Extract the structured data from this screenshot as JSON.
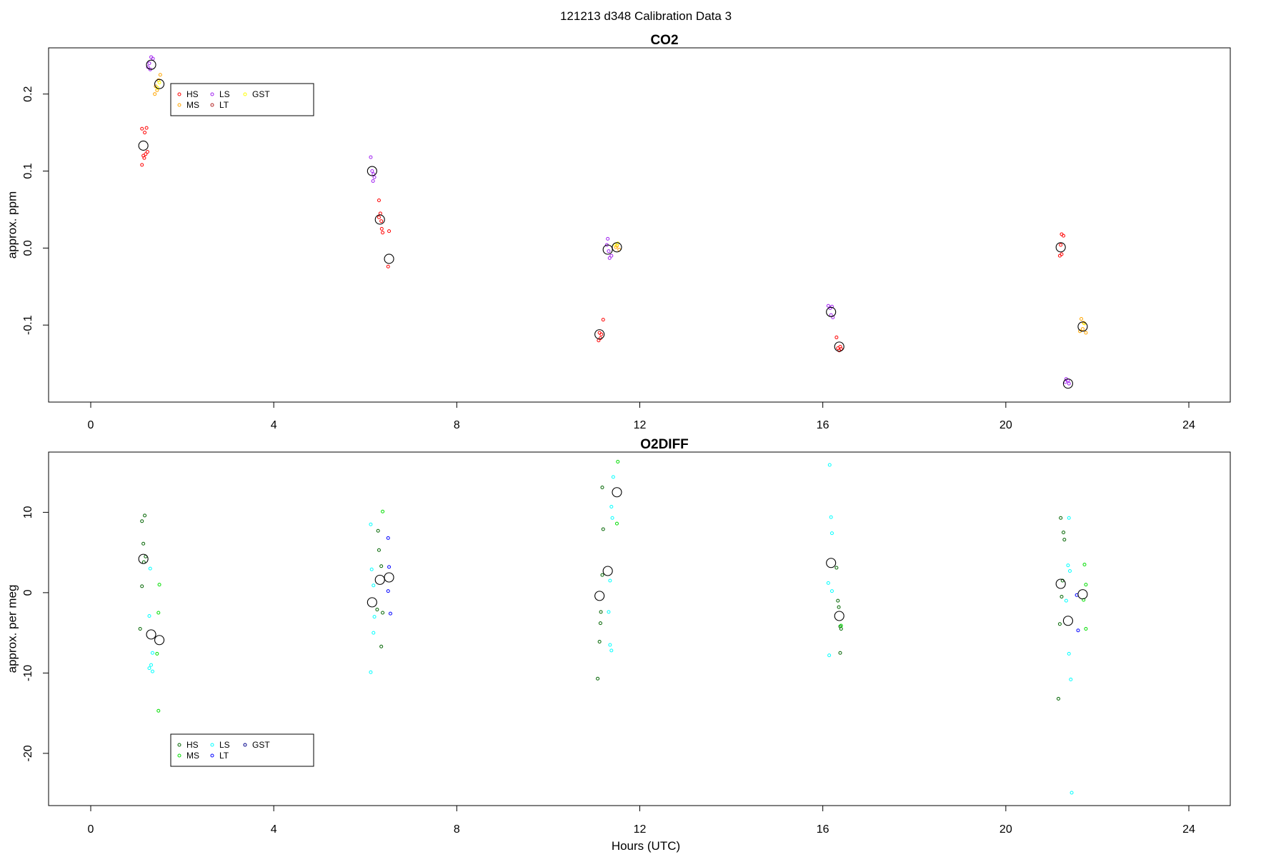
{
  "suptitle": "121213   d348   Calibration Data 3",
  "chart_data": [
    {
      "type": "scatter",
      "title": "CO2",
      "xlabel": "",
      "ylabel": "approx. ppm",
      "xlim": [
        0,
        24
      ],
      "ylim": [
        -0.2,
        0.26
      ],
      "xticks": [
        "0",
        "4",
        "8",
        "12",
        "16",
        "20",
        "24"
      ],
      "xtick_values": [
        0,
        4,
        8,
        12,
        16,
        20,
        24
      ],
      "yticks": [
        "-0.1",
        "0.0",
        "0.1",
        "0.2"
      ],
      "ytick_values": [
        -0.1,
        0.0,
        0.1,
        0.2
      ],
      "legend_placement": "top-left",
      "legend": [
        {
          "name": "HS",
          "color": "#ff0000"
        },
        {
          "name": "MS",
          "color": "#ffa500"
        },
        {
          "name": "LS",
          "color": "#a020f0"
        },
        {
          "name": "LT",
          "color": "#b22222"
        },
        {
          "name": "GST",
          "color": "#ffff00"
        }
      ],
      "series": [
        {
          "name": "HS",
          "color": "#ff0000",
          "points": [
            [
              1.12,
              0.155
            ],
            [
              1.18,
              0.15
            ],
            [
              1.22,
              0.156
            ],
            [
              1.15,
              0.12
            ],
            [
              1.2,
              0.122
            ],
            [
              1.17,
              0.117
            ],
            [
              1.12,
              0.108
            ],
            [
              1.24,
              0.125
            ],
            [
              6.3,
              0.062
            ],
            [
              6.33,
              0.045
            ],
            [
              6.3,
              0.04
            ],
            [
              6.35,
              0.035
            ],
            [
              6.36,
              0.025
            ],
            [
              6.38,
              0.02
            ],
            [
              6.52,
              0.022
            ],
            [
              6.5,
              -0.024
            ],
            [
              11.2,
              -0.093
            ],
            [
              11.12,
              -0.11
            ],
            [
              11.14,
              -0.117
            ],
            [
              11.1,
              -0.12
            ],
            [
              11.16,
              -0.112
            ],
            [
              16.3,
              -0.116
            ],
            [
              16.33,
              -0.13
            ],
            [
              16.36,
              -0.133
            ],
            [
              16.4,
              -0.131
            ],
            [
              16.38,
              -0.128
            ],
            [
              21.22,
              0.018
            ],
            [
              21.26,
              0.016
            ],
            [
              21.2,
              0.004
            ],
            [
              21.22,
              -0.008
            ],
            [
              21.18,
              -0.01
            ]
          ]
        },
        {
          "name": "MS",
          "color": "#ffa500",
          "points": [
            [
              1.4,
              0.2
            ],
            [
              1.45,
              0.205
            ],
            [
              1.48,
              0.218
            ],
            [
              1.52,
              0.225
            ],
            [
              1.42,
              0.21
            ],
            [
              11.5,
              0.003
            ],
            [
              11.55,
              -0.002
            ],
            [
              11.48,
              0.001
            ],
            [
              21.65,
              -0.092
            ],
            [
              21.7,
              -0.097
            ],
            [
              21.68,
              -0.105
            ],
            [
              21.62,
              -0.108
            ],
            [
              21.75,
              -0.11
            ]
          ]
        },
        {
          "name": "LS",
          "color": "#a020f0",
          "points": [
            [
              1.28,
              0.24
            ],
            [
              1.32,
              0.248
            ],
            [
              1.36,
              0.246
            ],
            [
              1.25,
              0.235
            ],
            [
              1.3,
              0.232
            ],
            [
              6.12,
              0.118
            ],
            [
              6.15,
              0.1
            ],
            [
              6.18,
              0.096
            ],
            [
              6.2,
              0.092
            ],
            [
              6.17,
              0.087
            ],
            [
              11.3,
              0.012
            ],
            [
              11.28,
              0.004
            ],
            [
              11.32,
              -0.004
            ],
            [
              11.38,
              -0.01
            ],
            [
              11.34,
              -0.013
            ],
            [
              16.12,
              -0.075
            ],
            [
              16.16,
              -0.078
            ],
            [
              16.2,
              -0.076
            ],
            [
              16.18,
              -0.087
            ],
            [
              16.22,
              -0.09
            ],
            [
              21.32,
              -0.17
            ],
            [
              21.36,
              -0.172
            ],
            [
              21.38,
              -0.176
            ],
            [
              21.3,
              -0.174
            ]
          ]
        },
        {
          "name": "LT",
          "color": "#b22222",
          "points": []
        },
        {
          "name": "GST",
          "color": "#ffff00",
          "points": [
            [
              1.5,
              0.215
            ],
            [
              1.46,
              0.208
            ],
            [
              11.52,
              0.006
            ],
            [
              11.46,
              0.004
            ],
            [
              21.72,
              -0.098
            ]
          ]
        },
        {
          "name": "",
          "color": "#000000",
          "mean": true,
          "points": [
            [
              1.15,
              0.133
            ],
            [
              1.32,
              0.238
            ],
            [
              1.5,
              0.213
            ],
            [
              6.15,
              0.1
            ],
            [
              6.32,
              0.037
            ],
            [
              6.52,
              -0.014
            ],
            [
              11.12,
              -0.112
            ],
            [
              11.3,
              -0.002
            ],
            [
              11.5,
              0.001
            ],
            [
              16.18,
              -0.083
            ],
            [
              16.36,
              -0.128
            ],
            [
              21.2,
              0.001
            ],
            [
              21.36,
              -0.176
            ],
            [
              21.68,
              -0.102
            ]
          ]
        }
      ]
    },
    {
      "type": "scatter",
      "title": "O2DIFF",
      "xlabel": "Hours (UTC)",
      "ylabel": "approx. per meg",
      "xlim": [
        0,
        24
      ],
      "ylim": [
        -26.5,
        17.5
      ],
      "xticks": [
        "0",
        "4",
        "8",
        "12",
        "16",
        "20",
        "24"
      ],
      "xtick_values": [
        0,
        4,
        8,
        12,
        16,
        20,
        24
      ],
      "yticks": [
        "-20",
        "-10",
        "0",
        "10"
      ],
      "ytick_values": [
        -20,
        -10,
        0,
        10
      ],
      "legend_placement": "bottom-left",
      "legend": [
        {
          "name": "HS",
          "color": "#006400"
        },
        {
          "name": "MS",
          "color": "#00dd00"
        },
        {
          "name": "LS",
          "color": "#00ffff"
        },
        {
          "name": "LT",
          "color": "#0000ff"
        },
        {
          "name": "GST",
          "color": "#00008b"
        }
      ],
      "series": [
        {
          "name": "HS",
          "color": "#006400",
          "points": [
            [
              1.18,
              9.6
            ],
            [
              1.12,
              8.9
            ],
            [
              1.15,
              6.1
            ],
            [
              1.2,
              4.5
            ],
            [
              1.16,
              3.8
            ],
            [
              1.12,
              0.8
            ],
            [
              1.08,
              -4.5
            ],
            [
              6.28,
              7.7
            ],
            [
              6.3,
              5.3
            ],
            [
              6.35,
              3.3
            ],
            [
              6.26,
              -2.1
            ],
            [
              6.38,
              -2.5
            ],
            [
              6.35,
              -6.7
            ],
            [
              11.18,
              13.1
            ],
            [
              11.2,
              7.9
            ],
            [
              11.18,
              2.2
            ],
            [
              11.15,
              -2.4
            ],
            [
              11.14,
              -3.8
            ],
            [
              11.12,
              -6.1
            ],
            [
              11.08,
              -10.7
            ],
            [
              16.3,
              3.1
            ],
            [
              16.33,
              -1.0
            ],
            [
              16.35,
              -1.8
            ],
            [
              16.38,
              -4.2
            ],
            [
              16.4,
              -4.5
            ],
            [
              16.38,
              -7.5
            ],
            [
              21.2,
              9.3
            ],
            [
              21.26,
              7.5
            ],
            [
              21.28,
              6.6
            ],
            [
              21.24,
              1.5
            ],
            [
              21.22,
              -0.5
            ],
            [
              21.18,
              -3.9
            ],
            [
              21.15,
              -13.2
            ]
          ]
        },
        {
          "name": "MS",
          "color": "#00dd00",
          "points": [
            [
              1.5,
              1.0
            ],
            [
              1.48,
              -2.5
            ],
            [
              1.45,
              -7.6
            ],
            [
              1.48,
              -14.7
            ],
            [
              6.38,
              10.1
            ],
            [
              11.52,
              16.3
            ],
            [
              11.5,
              8.6
            ],
            [
              16.4,
              -4.1
            ],
            [
              21.72,
              3.5
            ],
            [
              21.75,
              1.0
            ],
            [
              21.7,
              -0.9
            ],
            [
              21.75,
              -4.5
            ]
          ]
        },
        {
          "name": "LS",
          "color": "#00ffff",
          "points": [
            [
              1.3,
              3.0
            ],
            [
              1.28,
              -2.9
            ],
            [
              1.35,
              -7.5
            ],
            [
              1.32,
              -9.0
            ],
            [
              1.28,
              -9.4
            ],
            [
              1.35,
              -9.8
            ],
            [
              6.12,
              8.5
            ],
            [
              6.14,
              2.9
            ],
            [
              6.18,
              0.9
            ],
            [
              6.2,
              -3.0
            ],
            [
              6.18,
              -5.0
            ],
            [
              6.12,
              -9.9
            ],
            [
              11.42,
              14.4
            ],
            [
              11.38,
              10.7
            ],
            [
              11.4,
              9.3
            ],
            [
              11.35,
              1.5
            ],
            [
              11.32,
              -2.4
            ],
            [
              11.35,
              -6.5
            ],
            [
              11.38,
              -7.2
            ],
            [
              16.15,
              15.9
            ],
            [
              16.18,
              9.4
            ],
            [
              16.2,
              7.4
            ],
            [
              16.12,
              1.2
            ],
            [
              16.2,
              0.2
            ],
            [
              16.14,
              -7.8
            ],
            [
              21.38,
              9.3
            ],
            [
              21.36,
              3.4
            ],
            [
              21.4,
              2.7
            ],
            [
              21.32,
              -1.0
            ],
            [
              21.38,
              -7.6
            ],
            [
              21.42,
              -10.8
            ],
            [
              21.44,
              -24.9
            ]
          ]
        },
        {
          "name": "LT",
          "color": "#0000ff",
          "points": [
            [
              6.5,
              6.8
            ],
            [
              6.52,
              3.2
            ],
            [
              6.5,
              0.2
            ],
            [
              6.55,
              -2.6
            ],
            [
              21.55,
              -0.3
            ],
            [
              21.58,
              -4.7
            ]
          ]
        },
        {
          "name": "GST",
          "color": "#00008b",
          "points": []
        },
        {
          "name": "",
          "color": "#000000",
          "mean": true,
          "points": [
            [
              1.15,
              4.2
            ],
            [
              1.32,
              -5.2
            ],
            [
              1.5,
              -5.9
            ],
            [
              6.15,
              -1.2
            ],
            [
              6.32,
              1.6
            ],
            [
              6.52,
              1.9
            ],
            [
              11.12,
              -0.4
            ],
            [
              11.3,
              2.7
            ],
            [
              11.5,
              12.5
            ],
            [
              16.18,
              3.7
            ],
            [
              16.36,
              -2.9
            ],
            [
              21.2,
              1.1
            ],
            [
              21.36,
              -3.5
            ],
            [
              21.68,
              -0.2
            ]
          ]
        }
      ]
    }
  ]
}
